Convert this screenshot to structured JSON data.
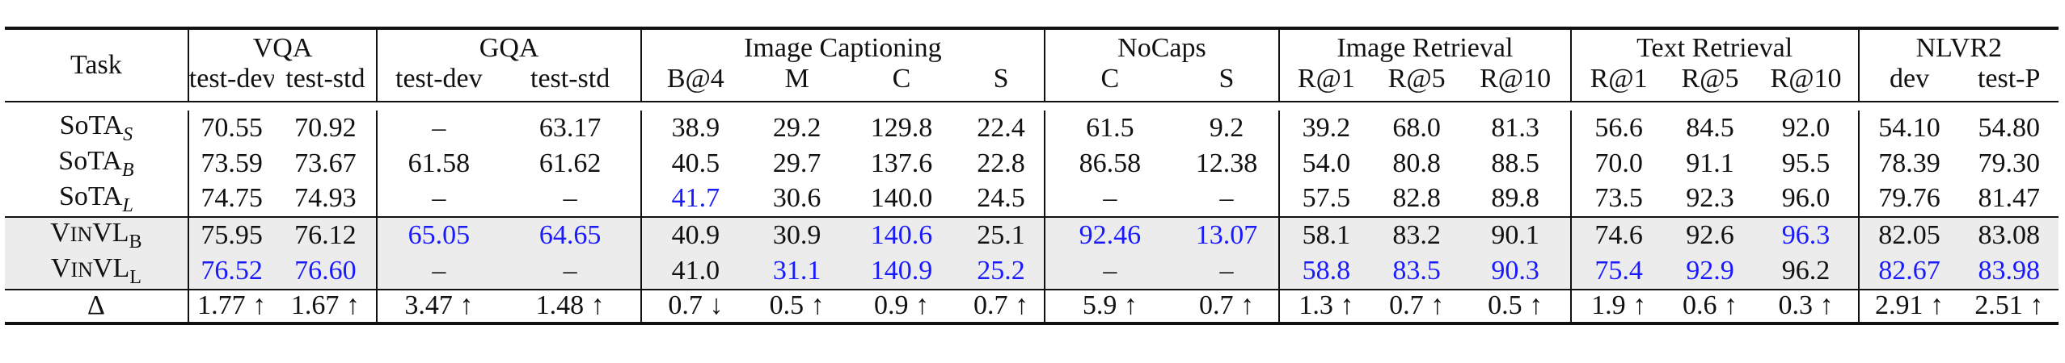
{
  "colors": {
    "highlight_blue": "#1a1aff",
    "highlight_row_bg": "#ececec",
    "text": "#111111"
  },
  "header": {
    "task_label": "Task",
    "groups": [
      "VQA",
      "GQA",
      "Image Captioning",
      "NoCaps",
      "Image Retrieval",
      "Text Retrieval",
      "NLVR2"
    ],
    "subcolumns": [
      "test-dev",
      "test-std",
      "test-dev",
      "test-std",
      "B@4",
      "M",
      "C",
      "S",
      "C",
      "S",
      "R@1",
      "R@5",
      "R@10",
      "R@1",
      "R@5",
      "R@10",
      "dev",
      "test-P"
    ]
  },
  "rows": [
    {
      "label_main": "SoTA",
      "label_sub": "S",
      "cells": [
        {
          "v": "70.55"
        },
        {
          "v": "70.92"
        },
        {
          "v": "–"
        },
        {
          "v": "63.17",
          "bold": true
        },
        {
          "v": "38.9"
        },
        {
          "v": "29.2"
        },
        {
          "v": "129.8"
        },
        {
          "v": "22.4"
        },
        {
          "v": "61.5"
        },
        {
          "v": "9.2"
        },
        {
          "v": "39.2"
        },
        {
          "v": "68.0"
        },
        {
          "v": "81.3"
        },
        {
          "v": "56.6"
        },
        {
          "v": "84.5"
        },
        {
          "v": "92.0"
        },
        {
          "v": "54.10"
        },
        {
          "v": "54.80"
        }
      ]
    },
    {
      "label_main": "SoTA",
      "label_sub": "B",
      "cells": [
        {
          "v": "73.59"
        },
        {
          "v": "73.67"
        },
        {
          "v": "61.58"
        },
        {
          "v": "61.62"
        },
        {
          "v": "40.5"
        },
        {
          "v": "29.7"
        },
        {
          "v": "137.6"
        },
        {
          "v": "22.8"
        },
        {
          "v": "86.58"
        },
        {
          "v": "12.38"
        },
        {
          "v": "54.0"
        },
        {
          "v": "80.8"
        },
        {
          "v": "88.5"
        },
        {
          "v": "70.0"
        },
        {
          "v": "91.1"
        },
        {
          "v": "95.5"
        },
        {
          "v": "78.39"
        },
        {
          "v": "79.30"
        }
      ]
    },
    {
      "label_main": "SoTA",
      "label_sub": "L",
      "cells": [
        {
          "v": "74.75"
        },
        {
          "v": "74.93"
        },
        {
          "v": "–"
        },
        {
          "v": "–"
        },
        {
          "v": "41.7",
          "bold": true,
          "blue": true
        },
        {
          "v": "30.6"
        },
        {
          "v": "140.0"
        },
        {
          "v": "24.5"
        },
        {
          "v": "–"
        },
        {
          "v": "–"
        },
        {
          "v": "57.5"
        },
        {
          "v": "82.8"
        },
        {
          "v": "89.8"
        },
        {
          "v": "73.5"
        },
        {
          "v": "92.3"
        },
        {
          "v": "96.0"
        },
        {
          "v": "79.76"
        },
        {
          "v": "81.47"
        }
      ]
    },
    {
      "label_big": "V",
      "label_small": "IN",
      "label_big2": "VL",
      "label_sub": "B",
      "highlight": true,
      "cells": [
        {
          "v": "75.95",
          "bold": true
        },
        {
          "v": "76.12",
          "bold": true
        },
        {
          "v": "65.05",
          "bold": true,
          "blue": true
        },
        {
          "v": "64.65",
          "bold": true,
          "blue": true
        },
        {
          "v": "40.9"
        },
        {
          "v": "30.9",
          "bold": true
        },
        {
          "v": "140.6",
          "bold": true,
          "blue": true
        },
        {
          "v": "25.1",
          "bold": true
        },
        {
          "v": "92.46",
          "bold": true,
          "blue": true
        },
        {
          "v": "13.07",
          "bold": true,
          "blue": true
        },
        {
          "v": "58.1",
          "bold": true
        },
        {
          "v": "83.2",
          "bold": true
        },
        {
          "v": "90.1",
          "bold": true
        },
        {
          "v": "74.6",
          "bold": true
        },
        {
          "v": "92.6",
          "bold": true
        },
        {
          "v": "96.3",
          "bold": true,
          "blue": true
        },
        {
          "v": "82.05",
          "bold": true
        },
        {
          "v": "83.08",
          "bold": true
        }
      ]
    },
    {
      "label_big": "V",
      "label_small": "IN",
      "label_big2": "VL",
      "label_sub": "L",
      "highlight": true,
      "cells": [
        {
          "v": "76.52",
          "bold": true,
          "blue": true
        },
        {
          "v": "76.60",
          "bold": true,
          "blue": true
        },
        {
          "v": "–"
        },
        {
          "v": "–"
        },
        {
          "v": "41.0",
          "bold": true
        },
        {
          "v": "31.1",
          "bold": true,
          "blue": true
        },
        {
          "v": "140.9",
          "bold": true,
          "blue": true
        },
        {
          "v": "25.2",
          "bold": true,
          "blue": true
        },
        {
          "v": "–"
        },
        {
          "v": "–"
        },
        {
          "v": "58.8",
          "bold": true,
          "blue": true
        },
        {
          "v": "83.5",
          "bold": true,
          "blue": true
        },
        {
          "v": "90.3",
          "bold": true,
          "blue": true
        },
        {
          "v": "75.4",
          "bold": true,
          "blue": true
        },
        {
          "v": "92.9",
          "bold": true,
          "blue": true
        },
        {
          "v": "96.2",
          "bold": true
        },
        {
          "v": "82.67",
          "bold": true,
          "blue": true
        },
        {
          "v": "83.98",
          "bold": true,
          "blue": true
        }
      ]
    },
    {
      "label_main": "Δ",
      "delta": true,
      "cells": [
        {
          "v": "1.77 ↑",
          "bold": true
        },
        {
          "v": "1.67 ↑",
          "bold": true
        },
        {
          "v": "3.47 ↑",
          "bold": true
        },
        {
          "v": "1.48 ↑",
          "bold": true
        },
        {
          "v": "0.7 ↓"
        },
        {
          "v": "0.5 ↑",
          "bold": true
        },
        {
          "v": "0.9 ↑",
          "bold": true
        },
        {
          "v": "0.7 ↑",
          "bold": true
        },
        {
          "v": "5.9 ↑",
          "bold": true
        },
        {
          "v": "0.7 ↑",
          "bold": true
        },
        {
          "v": "1.3 ↑",
          "bold": true
        },
        {
          "v": "0.7 ↑",
          "bold": true
        },
        {
          "v": "0.5 ↑",
          "bold": true
        },
        {
          "v": "1.9 ↑",
          "bold": true
        },
        {
          "v": "0.6 ↑",
          "bold": true
        },
        {
          "v": "0.3 ↑",
          "bold": true
        },
        {
          "v": "2.91 ↑",
          "bold": true
        },
        {
          "v": "2.51 ↑",
          "bold": true
        }
      ]
    }
  ]
}
